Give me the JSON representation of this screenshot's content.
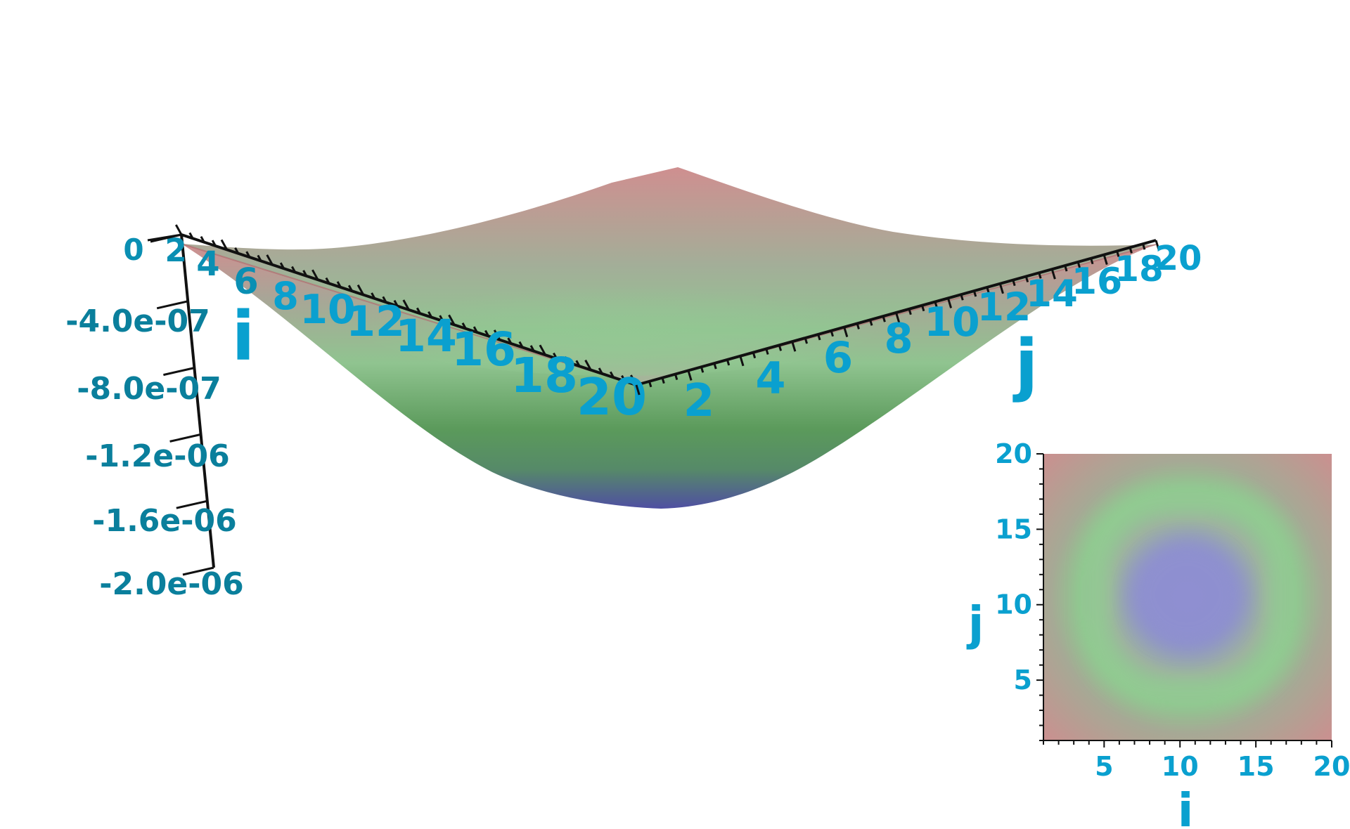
{
  "chart_data": [
    {
      "type": "surface3d",
      "title": "",
      "x_axis": {
        "label": "i",
        "ticks": [
          "0",
          "2",
          "4",
          "6",
          "8",
          "10",
          "12",
          "14",
          "16",
          "18",
          "20"
        ],
        "range": [
          0,
          20
        ]
      },
      "y_axis": {
        "label": "j",
        "ticks": [
          "2",
          "4",
          "6",
          "8",
          "10",
          "12",
          "14",
          "16",
          "18",
          "20"
        ],
        "range": [
          0,
          20
        ]
      },
      "z_axis": {
        "label": "",
        "ticks": [
          "-4.0e-07",
          "-8.0e-07",
          "-1.2e-06",
          "-1.6e-06",
          "-2.0e-06"
        ],
        "range": [
          -2e-06,
          0
        ]
      },
      "surface": {
        "description_of_shape": "bowl",
        "corner_value": 0,
        "center_value": -1.7e-06,
        "center": [
          10,
          10
        ]
      },
      "colormap": [
        "#4f4fa0",
        "#5a9a5a",
        "#93c493",
        "#c98f8f"
      ],
      "grid": false
    },
    {
      "type": "heatmap",
      "title": "",
      "xlabel": "i",
      "ylabel": "j",
      "x_ticks": [
        "5",
        "10",
        "15",
        "20"
      ],
      "y_ticks": [
        "5",
        "10",
        "15",
        "20"
      ],
      "xlim": [
        1,
        20
      ],
      "ylim": [
        1,
        20
      ],
      "colormap": [
        "#8f8fc8",
        "#93c493",
        "#c98f8f"
      ],
      "grid": false
    }
  ],
  "colors": {
    "tick_label": "#0aa0cf",
    "z_tick_label": "#0a7f9c",
    "axis_line": "#111111"
  }
}
